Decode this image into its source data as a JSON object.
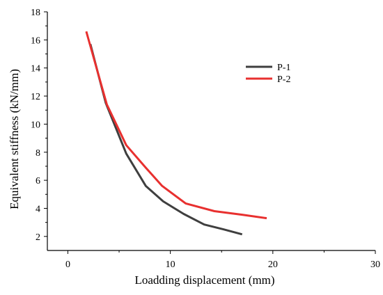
{
  "chart_data": {
    "type": "line",
    "title": "",
    "xlabel": "Loadding displacement (mm)",
    "ylabel": "Equivalent stiffness (kN/mm)",
    "xlim": [
      -2,
      30
    ],
    "ylim": [
      1,
      18
    ],
    "xticks": [
      0,
      10,
      20,
      30
    ],
    "yticks": [
      2,
      4,
      6,
      8,
      10,
      12,
      14,
      16,
      18
    ],
    "grid": false,
    "legend_position": "upper-right",
    "series": [
      {
        "name": "P-1",
        "color": "#3f3f3f",
        "x": [
          2.2,
          3.7,
          5.7,
          7.6,
          9.3,
          11.3,
          13.3,
          15.2,
          17.0
        ],
        "y": [
          15.7,
          11.5,
          7.9,
          5.6,
          4.5,
          3.6,
          2.85,
          2.5,
          2.15
        ]
      },
      {
        "name": "P-2",
        "color": "#e8302f",
        "x": [
          1.8,
          3.8,
          5.7,
          7.6,
          9.2,
          11.5,
          14.3,
          17.0,
          19.4
        ],
        "y": [
          16.6,
          11.4,
          8.5,
          6.9,
          5.6,
          4.35,
          3.8,
          3.55,
          3.3
        ]
      }
    ]
  }
}
